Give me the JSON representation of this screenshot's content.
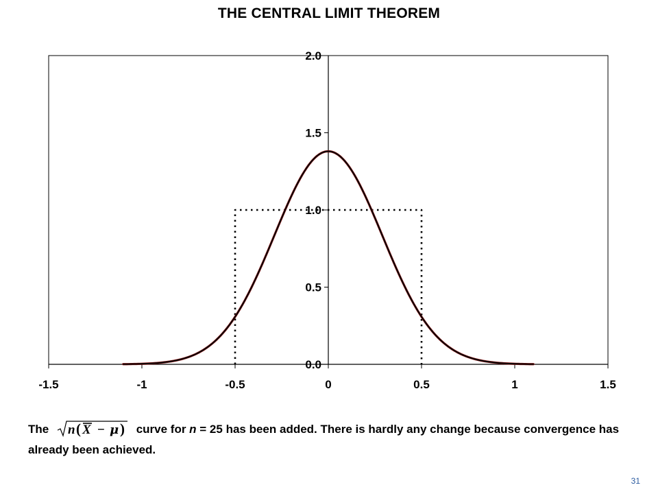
{
  "title": "THE CENTRAL LIMIT THEOREM",
  "caption": {
    "part1": "The",
    "formula_label": "sqrt(n)(X̄ − μ)",
    "part2": " curve for ",
    "n_var": "n",
    "part3": " = 25 has been added.  There is hardly any change because convergence has already been achieved."
  },
  "slide_number": "31",
  "colors": {
    "accent_curve": "#8b1a1a",
    "lines": "#000000"
  },
  "chart_data": {
    "type": "line",
    "title": "THE CENTRAL LIMIT THEOREM",
    "xlabel": "",
    "ylabel": "",
    "xlim": [
      -1.5,
      1.5
    ],
    "ylim": [
      0,
      2
    ],
    "x_ticks": [
      "-1.5",
      "-1",
      "-0.5",
      "0",
      "0.5",
      "1",
      "1.5"
    ],
    "y_ticks": [
      "0.0",
      "0.5",
      "1.0",
      "1.5",
      "2.0"
    ],
    "grid": false,
    "series": [
      {
        "style": "dotted",
        "kind": "uniform",
        "range": [
          -0.5,
          0.5
        ],
        "height": 1.0
      },
      {
        "style": "dashed",
        "kind": "normal",
        "mean": 0,
        "sd": 0.2887,
        "peak": 1.38
      },
      {
        "style": "solid-red",
        "kind": "normal",
        "mean": 0,
        "sd": 0.2887,
        "peak": 1.38
      },
      {
        "style": "solid",
        "kind": "normal",
        "mean": 0,
        "sd": 0.2887,
        "peak": 1.38
      }
    ]
  }
}
